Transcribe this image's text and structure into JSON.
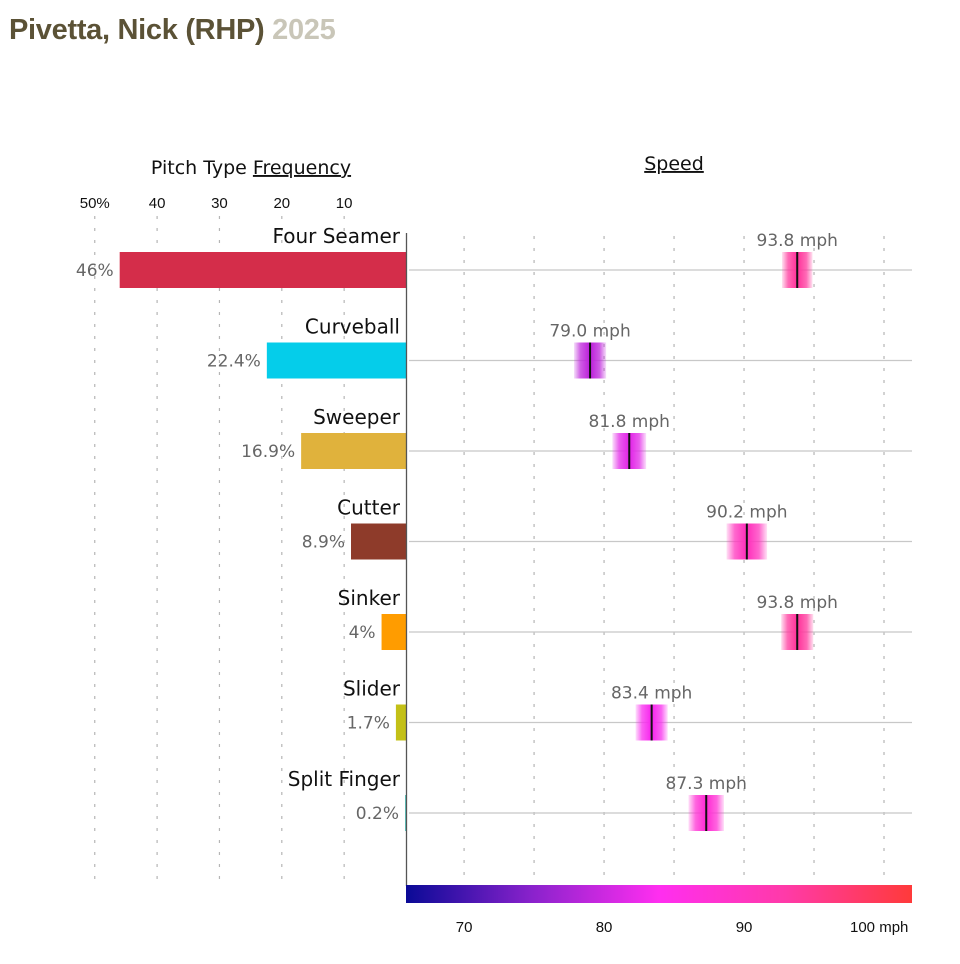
{
  "header": {
    "player": "Pivetta, Nick (RHP)",
    "season": "2025"
  },
  "chart_data": {
    "type": "bar",
    "title": "Pivetta, Nick (RHP) 2025",
    "frequency_panel": {
      "title_prefix": "Pitch Type ",
      "title_underlined": "Frequency",
      "xlim": [
        0,
        50
      ],
      "ticks": [
        {
          "value": 50,
          "label": "50%"
        },
        {
          "value": 40,
          "label": "40"
        },
        {
          "value": 30,
          "label": "30"
        },
        {
          "value": 20,
          "label": "20"
        },
        {
          "value": 10,
          "label": "10"
        }
      ],
      "grid": "dotted"
    },
    "speed_panel": {
      "title": "Speed",
      "xlim": [
        65.85,
        102
      ],
      "ticks": [
        {
          "value": 70,
          "label": "70"
        },
        {
          "value": 80,
          "label": "80"
        },
        {
          "value": 90,
          "label": "90"
        },
        {
          "value": 100,
          "label": "100 mph"
        }
      ],
      "gridlines": [
        70,
        75,
        80,
        85,
        90,
        95,
        100
      ],
      "colorscale": [
        "#0a0a96",
        "#8a22cc",
        "#ff2ef0",
        "#ff3aa8",
        "#ff3a3a"
      ],
      "colorscale_range": [
        65.85,
        102
      ]
    },
    "categories": [
      "Four Seamer",
      "Curveball",
      "Sweeper",
      "Cutter",
      "Sinker",
      "Slider",
      "Split Finger"
    ],
    "series": [
      {
        "name": "Frequency (%)",
        "values": [
          46,
          22.4,
          16.9,
          8.9,
          4,
          1.7,
          0.2
        ],
        "labels": [
          "46%",
          "22.4%",
          "16.9%",
          "8.9%",
          "4%",
          "1.7%",
          "0.2%"
        ],
        "colors": [
          "#d42d4a",
          "#05cdea",
          "#e0b23c",
          "#8e3b2a",
          "#ff9c00",
          "#c3c017",
          "#5fc8c0"
        ]
      },
      {
        "name": "Avg Speed (mph)",
        "values": [
          93.8,
          79.0,
          81.8,
          90.2,
          93.8,
          83.4,
          87.3
        ],
        "labels": [
          "93.8 mph",
          "79.0 mph",
          "81.8 mph",
          "90.2 mph",
          "93.8 mph",
          "83.4 mph",
          "87.3 mph"
        ],
        "spread_mph": [
          2.2,
          2.4,
          2.6,
          3.4,
          2.4,
          2.4,
          2.8
        ]
      }
    ]
  }
}
